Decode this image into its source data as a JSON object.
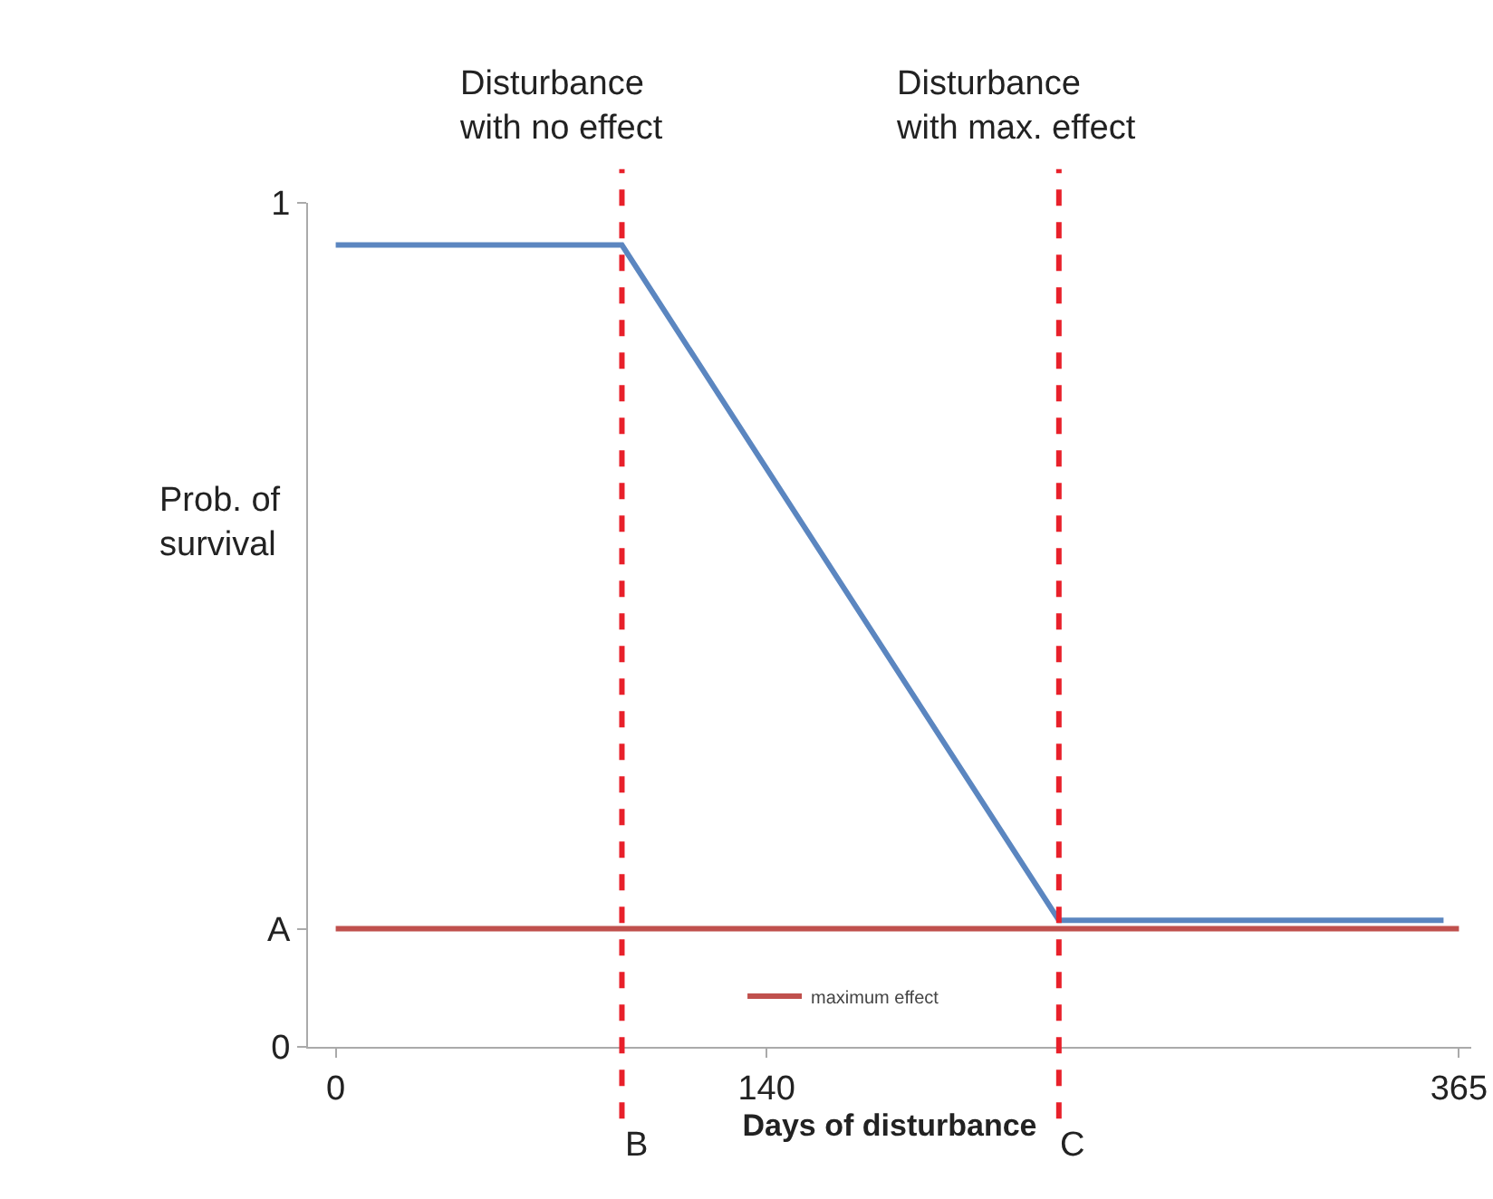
{
  "chart_data": {
    "type": "line",
    "xlabel": "Days of disturbance",
    "ylabel": "Prob. of\nsurvival",
    "xlim": [
      -9,
      369
    ],
    "ylim": [
      0,
      1
    ],
    "xticks": [
      0,
      140,
      365
    ],
    "annotations": [
      {
        "text": "B",
        "x": 93,
        "y": 0
      },
      {
        "text": "C",
        "x": 235,
        "y": 0
      }
    ],
    "yticks": [
      0,
      {
        "value": 0.14,
        "label": "A"
      },
      1
    ],
    "series": [
      {
        "color": "#5b86c0",
        "x": [
          0,
          93,
          235,
          360
        ],
        "values": [
          0.95,
          0.95,
          0.15,
          0.15
        ]
      },
      {
        "name": "maximum effect",
        "color": "#c0504d",
        "x": [
          0,
          365
        ],
        "values": [
          0.14,
          0.14
        ]
      }
    ],
    "ref_lines": [
      {
        "axis": "x",
        "value": 93,
        "label": "Disturbance\nwith no effect",
        "color": "#e8202a",
        "line_style": "dashed"
      },
      {
        "axis": "x",
        "value": 235,
        "label": "Disturbance\nwith max. effect",
        "color": "#e8202a",
        "line_style": "dashed"
      }
    ],
    "legend": "bottom",
    "grid": false,
    "marker": "none",
    "line_style": "solid"
  }
}
